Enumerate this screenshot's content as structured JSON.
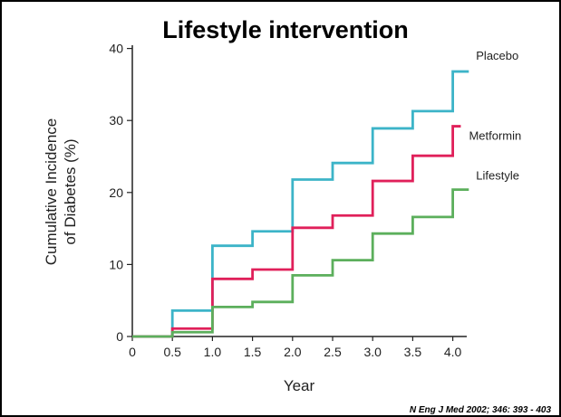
{
  "chart_data": {
    "type": "line",
    "title": "Lifestyle intervention",
    "xlabel": "Year",
    "ylabel": [
      "Cumulative Incidence",
      "of Diabetes (%)"
    ],
    "xlim": [
      0,
      4.25
    ],
    "ylim": [
      0,
      40
    ],
    "x_ticks": [
      "0",
      "0.5",
      "1.0",
      "1.5",
      "2.0",
      "2.5",
      "3.0",
      "3.5",
      "4.0"
    ],
    "y_ticks": [
      "0",
      "10",
      "20",
      "30",
      "40"
    ],
    "grid": false,
    "legend_placement": "labels at line ends (right)",
    "step": true,
    "series": [
      {
        "name": "Placebo",
        "color": "#3cb4c8",
        "x": [
          0,
          0.5,
          1.0,
          1.5,
          2.0,
          2.5,
          3.0,
          3.5,
          4.0,
          4.2
        ],
        "y": [
          0,
          3.6,
          12.6,
          14.6,
          21.8,
          24.1,
          28.9,
          31.3,
          36.8,
          36.8
        ]
      },
      {
        "name": "Metformin",
        "color": "#e0205a",
        "x": [
          0,
          0.5,
          1.0,
          1.5,
          2.0,
          2.5,
          3.0,
          3.5,
          4.0,
          4.1
        ],
        "y": [
          0,
          1.1,
          8.0,
          9.3,
          15.1,
          16.8,
          21.6,
          25.1,
          29.2,
          29.2
        ]
      },
      {
        "name": "Lifestyle",
        "color": "#5caf5c",
        "x": [
          0,
          0.5,
          1.0,
          1.5,
          2.0,
          2.5,
          3.0,
          3.5,
          4.0,
          4.2
        ],
        "y": [
          0,
          0.6,
          4.1,
          4.8,
          8.5,
          10.6,
          14.3,
          16.6,
          20.4,
          20.4
        ]
      }
    ],
    "citation": "N Eng J Med 2002; 346: 393 - 403"
  }
}
